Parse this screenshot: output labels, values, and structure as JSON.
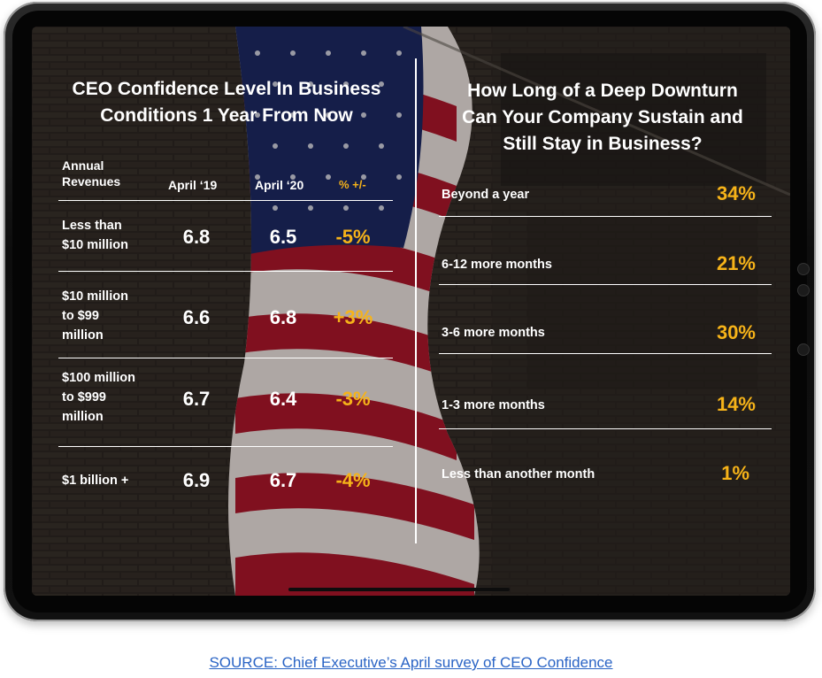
{
  "colors": {
    "accent": "#f6b319",
    "text": "#ffffff",
    "source_link": "#2a64c5",
    "flag_red": "#b2172b",
    "flag_blue": "#1e2a66"
  },
  "left_panel": {
    "title_line1": "CEO Confidence Level In Business",
    "title_line2": "Conditions 1 Year From Now",
    "headers": {
      "revenues_line1": "Annual",
      "revenues_line2": "Revenues",
      "apr19": "April ‘19",
      "apr20": "April ‘20",
      "change": "% +/-"
    },
    "rows": [
      {
        "label_lines": [
          "Less than",
          "$10 million"
        ],
        "apr19": "6.8",
        "apr20": "6.5",
        "change": "-5%"
      },
      {
        "label_lines": [
          "$10 million",
          "to $99",
          "million"
        ],
        "apr19": "6.6",
        "apr20": "6.8",
        "change": "+3%"
      },
      {
        "label_lines": [
          "$100 million",
          "to $999",
          "million"
        ],
        "apr19": "6.7",
        "apr20": "6.4",
        "change": "-3%"
      },
      {
        "label_lines": [
          "$1 billion +"
        ],
        "apr19": "6.9",
        "apr20": "6.7",
        "change": "-4%"
      }
    ]
  },
  "right_panel": {
    "title_line1": "How Long of a Deep Downturn",
    "title_line2": "Can Your Company Sustain and",
    "title_line3": "Still Stay in Business?",
    "rows": [
      {
        "label": "Beyond a year",
        "pct": "34%"
      },
      {
        "label": "6-12 more months",
        "pct": "21%"
      },
      {
        "label": "3-6 more months",
        "pct": "30%"
      },
      {
        "label": "1-3 more months",
        "pct": "14%"
      },
      {
        "label": "Less than another month",
        "pct": "1%"
      }
    ]
  },
  "source": "SOURCE: Chief Executive’s April survey of CEO Confidence",
  "chart_data": [
    {
      "type": "table",
      "title": "CEO Confidence Level In Business Conditions 1 Year From Now",
      "columns": [
        "Annual Revenues",
        "April ‘19",
        "April ‘20",
        "% +/-"
      ],
      "categories": [
        "Less than $10 million",
        "$10 million to $99 million",
        "$100 million to $999 million",
        "$1 billion +"
      ],
      "series": [
        {
          "name": "April ‘19",
          "values": [
            6.8,
            6.6,
            6.7,
            6.9
          ]
        },
        {
          "name": "April ‘20",
          "values": [
            6.5,
            6.8,
            6.4,
            6.7
          ]
        },
        {
          "name": "% +/-",
          "values": [
            -5,
            3,
            -3,
            -4
          ]
        }
      ]
    },
    {
      "type": "table",
      "title": "How Long of a Deep Downturn Can Your Company Sustain and Still Stay in Business?",
      "categories": [
        "Beyond a year",
        "6-12 more months",
        "3-6 more months",
        "1-3 more months",
        "Less than another month"
      ],
      "values": [
        34,
        21,
        30,
        14,
        1
      ]
    }
  ]
}
